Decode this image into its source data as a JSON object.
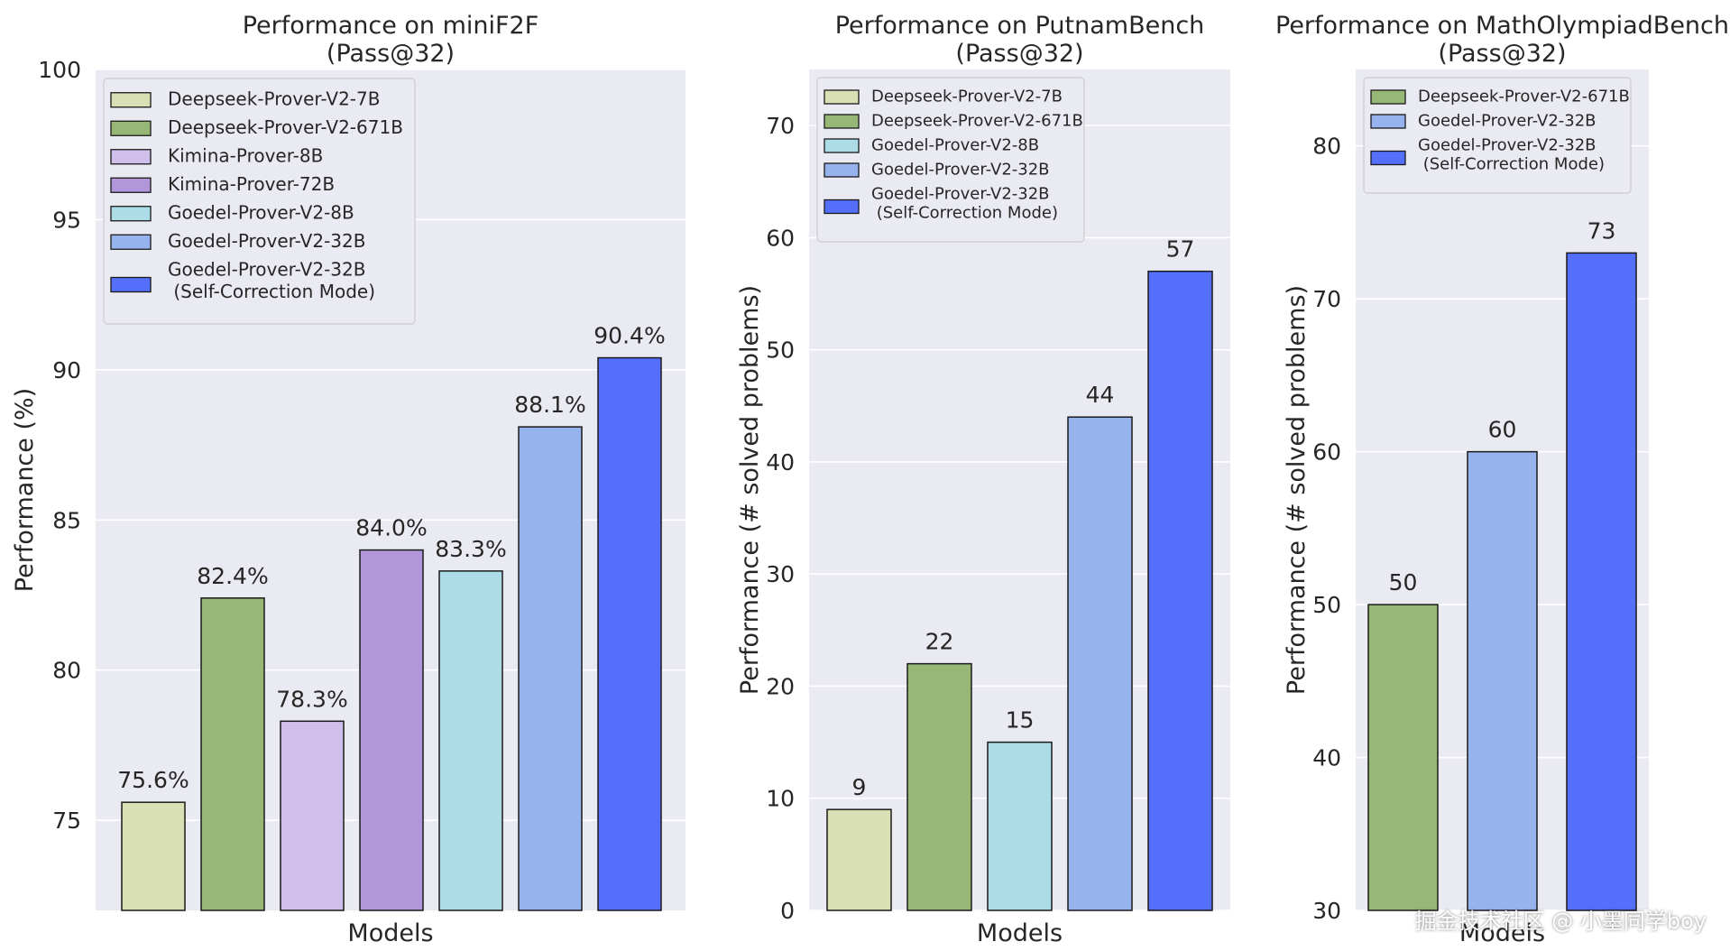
{
  "watermark": "掘金技术社区 @ 小墨同学boy",
  "colors": {
    "deepseek_7b": "#d9e0b4",
    "deepseek_671b": "#97b776",
    "kimina_8b": "#cfbfea",
    "kimina_72b": "#b196da",
    "goedel_8b": "#acdde7",
    "goedel_32b": "#96b3ed",
    "goedel_32b_sc": "#536ffb"
  },
  "chart_data": [
    {
      "type": "bar",
      "title": [
        "Performance on miniF2F",
        "(Pass@32)"
      ],
      "xlabel": "Models",
      "ylabel": "Performance (%)",
      "ylim": [
        72,
        100
      ],
      "yticks": [
        75,
        80,
        85,
        90,
        95,
        100
      ],
      "grid": true,
      "legend_position": "top-left",
      "categories": [
        "Deepseek-Prover-V2-7B",
        "Deepseek-Prover-V2-671B",
        "Kimina-Prover-8B",
        "Kimina-Prover-72B",
        "Goedel-Prover-V2-8B",
        "Goedel-Prover-V2-32B",
        "Goedel-Prover-V2-32B (Self-Correction Mode)"
      ],
      "legend": [
        [
          "Deepseek-Prover-V2-7B"
        ],
        [
          "Deepseek-Prover-V2-671B"
        ],
        [
          "Kimina-Prover-8B"
        ],
        [
          "Kimina-Prover-72B"
        ],
        [
          "Goedel-Prover-V2-8B"
        ],
        [
          "Goedel-Prover-V2-32B"
        ],
        [
          "Goedel-Prover-V2-32B",
          " (Self-Correction Mode)"
        ]
      ],
      "values": [
        75.6,
        82.4,
        78.3,
        84.0,
        83.3,
        88.1,
        90.4
      ],
      "value_labels": [
        "75.6%",
        "82.4%",
        "78.3%",
        "84.0%",
        "83.3%",
        "88.1%",
        "90.4%"
      ],
      "colors": [
        "#d9e0b4",
        "#97b776",
        "#cfbfea",
        "#b196da",
        "#acdde7",
        "#96b3ed",
        "#536ffb"
      ]
    },
    {
      "type": "bar",
      "title": [
        "Performance on PutnamBench",
        "(Pass@32)"
      ],
      "xlabel": "Models",
      "ylabel": "Performance (# solved problems)",
      "ylim": [
        0,
        75
      ],
      "yticks": [
        0,
        10,
        20,
        30,
        40,
        50,
        60,
        70
      ],
      "grid": true,
      "legend_position": "top-left",
      "categories": [
        "Deepseek-Prover-V2-7B",
        "Deepseek-Prover-V2-671B",
        "Goedel-Prover-V2-8B",
        "Goedel-Prover-V2-32B",
        "Goedel-Prover-V2-32B (Self-Correction Mode)"
      ],
      "legend": [
        [
          "Deepseek-Prover-V2-7B"
        ],
        [
          "Deepseek-Prover-V2-671B"
        ],
        [
          "Goedel-Prover-V2-8B"
        ],
        [
          "Goedel-Prover-V2-32B"
        ],
        [
          "Goedel-Prover-V2-32B",
          " (Self-Correction Mode)"
        ]
      ],
      "values": [
        9,
        22,
        15,
        44,
        57
      ],
      "value_labels": [
        "9",
        "22",
        "15",
        "44",
        "57"
      ],
      "colors": [
        "#d9e0b4",
        "#97b776",
        "#acdde7",
        "#96b3ed",
        "#536ffb"
      ]
    },
    {
      "type": "bar",
      "title": [
        "Performance on MathOlympiadBench",
        "(Pass@32)"
      ],
      "xlabel": "Models",
      "ylabel": "Performance (# solved problems)",
      "ylim": [
        30,
        85
      ],
      "yticks": [
        30,
        40,
        50,
        60,
        70,
        80
      ],
      "grid": true,
      "legend_position": "top-left",
      "categories": [
        "Deepseek-Prover-V2-671B",
        "Goedel-Prover-V2-32B",
        "Goedel-Prover-V2-32B (Self-Correction Mode)"
      ],
      "legend": [
        [
          "Deepseek-Prover-V2-671B"
        ],
        [
          "Goedel-Prover-V2-32B"
        ],
        [
          "Goedel-Prover-V2-32B",
          " (Self-Correction Mode)"
        ]
      ],
      "values": [
        50,
        60,
        73
      ],
      "value_labels": [
        "50",
        "60",
        "73"
      ],
      "colors": [
        "#97b776",
        "#96b3ed",
        "#536ffb"
      ]
    }
  ]
}
